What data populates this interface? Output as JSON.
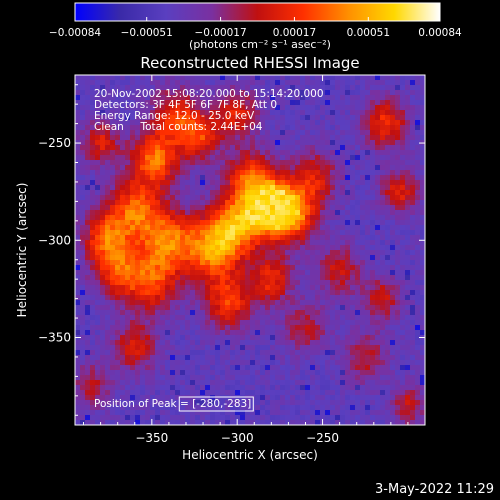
{
  "chart_data": {
    "type": "heatmap",
    "title": "Reconstructed RHESSI Image",
    "xlabel": "Heliocentric X (arcsec)",
    "ylabel": "Heliocentric Y (arcsec)",
    "xlim": [
      -395,
      -190
    ],
    "ylim": [
      -395,
      -215
    ],
    "x_ticks": [
      -350,
      -300,
      -250
    ],
    "y_ticks": [
      -250,
      -300,
      -350
    ],
    "colorbar": {
      "range": [
        -0.00084,
        0.00084
      ],
      "tick_values": [
        -0.00084,
        -0.00051,
        -0.00017,
        0.00017,
        0.00051,
        0.00084
      ],
      "tick_labels": [
        "−0.00084",
        "−0.00051",
        "−0.00017",
        "0.00017",
        "0.00051",
        "0.00084"
      ],
      "unit_label": "(photons cm⁻² s⁻¹ asec⁻²)",
      "stops": [
        "#0000ff",
        "#3a2aa8",
        "#5a3fc0",
        "#7a30a0",
        "#c01010",
        "#ff3000",
        "#ff9000",
        "#ffd800",
        "#ffffff"
      ]
    },
    "info_lines": [
      "20-Nov-2002 15:08:20.000 to 15:14:20.000",
      "Detectors: 3F 4F 5F 6F 7F 8F, Att 0",
      "Energy Range: 12.0 - 25.0 keV",
      "Clean     Total counts: 2.44E+04"
    ],
    "peak_label": "Position of Peak = [-280,-283]",
    "peak_position": [
      -280,
      -283
    ],
    "sources": [
      {
        "x": -280,
        "y": -283,
        "amp": 1.0,
        "sigma": 9
      },
      {
        "x": -268,
        "y": -287,
        "amp": 0.7,
        "sigma": 10
      },
      {
        "x": -300,
        "y": -292,
        "amp": 0.75,
        "sigma": 11
      },
      {
        "x": -315,
        "y": -305,
        "amp": 0.7,
        "sigma": 11
      },
      {
        "x": -292,
        "y": -268,
        "amp": 0.6,
        "sigma": 10
      },
      {
        "x": -340,
        "y": -300,
        "amp": 0.65,
        "sigma": 11
      },
      {
        "x": -350,
        "y": -322,
        "amp": 0.55,
        "sigma": 11
      },
      {
        "x": -348,
        "y": -258,
        "amp": 0.7,
        "sigma": 10
      },
      {
        "x": -360,
        "y": -285,
        "amp": 0.65,
        "sigma": 11
      },
      {
        "x": -370,
        "y": -315,
        "amp": 0.55,
        "sigma": 10
      },
      {
        "x": -378,
        "y": -298,
        "amp": 0.55,
        "sigma": 9
      },
      {
        "x": -337,
        "y": -235,
        "amp": 0.5,
        "sigma": 9
      },
      {
        "x": -322,
        "y": -246,
        "amp": 0.55,
        "sigma": 9
      },
      {
        "x": -305,
        "y": -332,
        "amp": 0.55,
        "sigma": 10
      },
      {
        "x": -280,
        "y": -320,
        "amp": 0.5,
        "sigma": 9
      },
      {
        "x": -360,
        "y": -355,
        "amp": 0.45,
        "sigma": 9
      },
      {
        "x": -380,
        "y": -250,
        "amp": 0.45,
        "sigma": 8
      },
      {
        "x": -300,
        "y": -235,
        "amp": 0.45,
        "sigma": 9
      },
      {
        "x": -213,
        "y": -240,
        "amp": 0.55,
        "sigma": 9
      },
      {
        "x": -205,
        "y": -275,
        "amp": 0.45,
        "sigma": 8
      },
      {
        "x": -240,
        "y": -315,
        "amp": 0.4,
        "sigma": 9
      },
      {
        "x": -255,
        "y": -268,
        "amp": 0.45,
        "sigma": 10
      },
      {
        "x": -260,
        "y": -345,
        "amp": 0.35,
        "sigma": 9
      },
      {
        "x": -225,
        "y": -360,
        "amp": 0.35,
        "sigma": 9
      },
      {
        "x": -385,
        "y": -375,
        "amp": 0.35,
        "sigma": 8
      },
      {
        "x": -200,
        "y": -385,
        "amp": 0.4,
        "sigma": 7
      },
      {
        "x": -215,
        "y": -330,
        "amp": 0.4,
        "sigma": 8
      }
    ]
  },
  "footer": {
    "date_stamp": "3-May-2022 11:29"
  }
}
